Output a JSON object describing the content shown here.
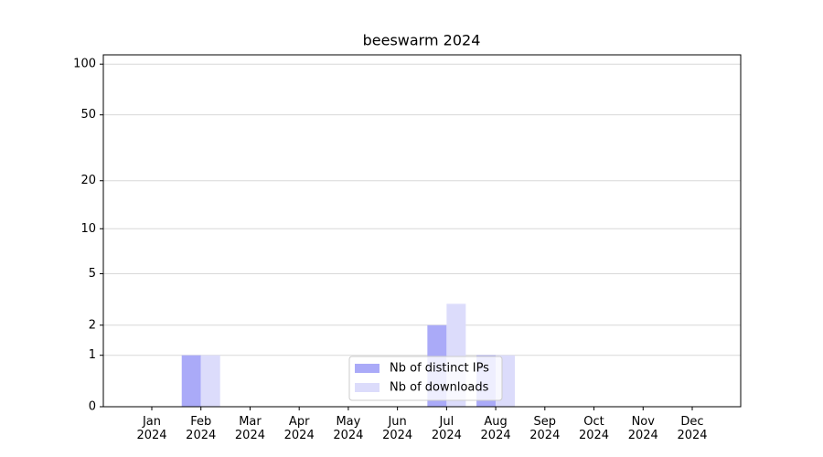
{
  "chart_data": {
    "type": "bar",
    "title": "beeswarm 2024",
    "categories": [
      "Jan\n2024",
      "Feb\n2024",
      "Mar\n2024",
      "Apr\n2024",
      "May\n2024",
      "Jun\n2024",
      "Jul\n2024",
      "Aug\n2024",
      "Sep\n2024",
      "Oct\n2024",
      "Nov\n2024",
      "Dec\n2024"
    ],
    "series": [
      {
        "name": "Nb of distinct IPs",
        "color": "#aaaaf8",
        "values": [
          0,
          1,
          0,
          0,
          0,
          0,
          2,
          1,
          0,
          0,
          0,
          0
        ]
      },
      {
        "name": "Nb of downloads",
        "color": "#dcdcfb",
        "values": [
          0,
          1,
          0,
          0,
          0,
          0,
          3,
          1,
          0,
          0,
          0,
          0
        ]
      }
    ],
    "yscale": "log1p",
    "ylim": [
      0,
      113.5
    ],
    "yticks": [
      0,
      1,
      2,
      5,
      10,
      20,
      50,
      100
    ],
    "grid": true,
    "legend": "lower center"
  }
}
